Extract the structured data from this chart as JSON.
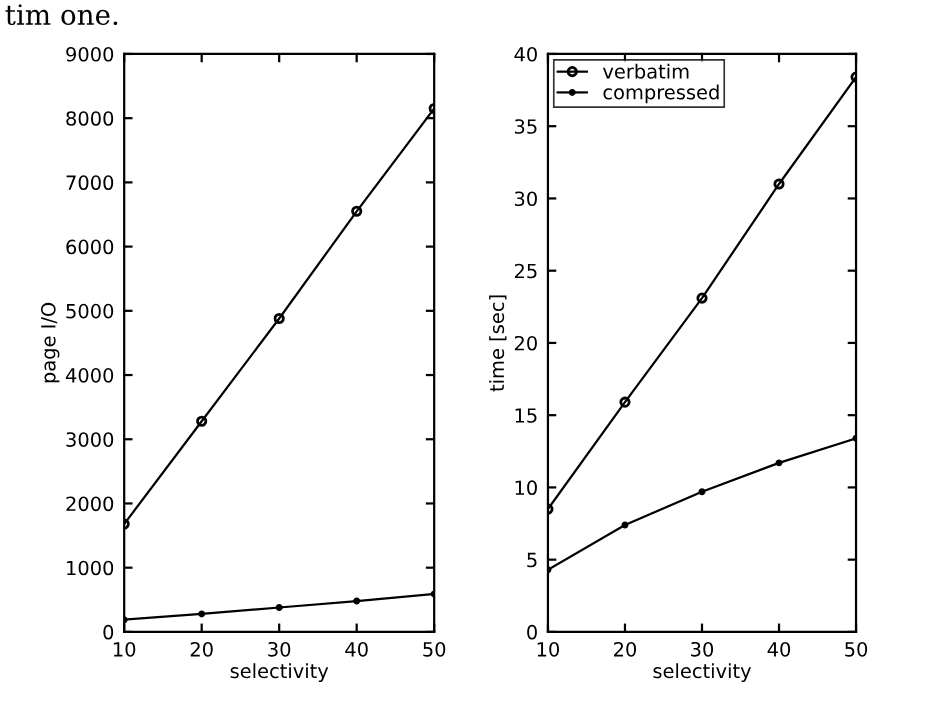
{
  "chart_data": [
    {
      "type": "line",
      "xlabel": "selectivity",
      "ylabel": "page I/O",
      "x": [
        10,
        20,
        30,
        40,
        50
      ],
      "xlim": [
        10,
        50
      ],
      "xticks": [
        10,
        20,
        30,
        40,
        50
      ],
      "ylim": [
        0,
        9000
      ],
      "yticks": [
        0,
        1000,
        2000,
        3000,
        4000,
        5000,
        6000,
        7000,
        8000,
        9000
      ],
      "grid": false,
      "legend": false,
      "line_style": "solid",
      "annotations": [
        "tim one."
      ],
      "series": [
        {
          "color": "#000000",
          "marker": "circle",
          "values": [
            1680,
            3280,
            4880,
            6550,
            8150
          ]
        },
        {
          "color": "#000000",
          "marker": "point",
          "values": [
            190,
            280,
            380,
            480,
            590
          ]
        }
      ]
    },
    {
      "type": "line",
      "xlabel": "selectivity",
      "ylabel": "time [sec]",
      "x": [
        10,
        20,
        30,
        40,
        50
      ],
      "xlim": [
        10,
        50
      ],
      "xticks": [
        10,
        20,
        30,
        40,
        50
      ],
      "ylim": [
        0,
        40
      ],
      "yticks": [
        0,
        5,
        10,
        15,
        20,
        25,
        30,
        35,
        40
      ],
      "grid": false,
      "legend": "top left",
      "line_style": "solid",
      "series": [
        {
          "name": "verbatim",
          "color": "#000000",
          "marker": "circle",
          "values": [
            8.5,
            15.9,
            23.1,
            31.0,
            38.4
          ]
        },
        {
          "name": "compressed",
          "color": "#000000",
          "marker": "point",
          "values": [
            4.3,
            7.4,
            9.7,
            11.7,
            13.4
          ]
        }
      ]
    }
  ]
}
